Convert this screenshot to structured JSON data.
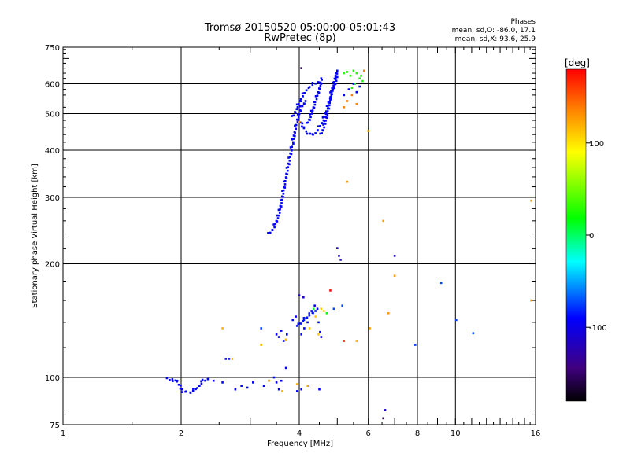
{
  "chart_data": {
    "type": "scatter",
    "title": "Tromsø 20150520 05:00:00-05:01:43",
    "subtitle": "RwPretec (8p)",
    "xlabel": "Frequency [MHz]",
    "ylabel": "Stationary phase Virtual Height [km]",
    "x_scale": "log",
    "y_scale": "log",
    "xlim": [
      1,
      16
    ],
    "ylim": [
      75,
      750
    ],
    "x_ticks": [
      1,
      2,
      4,
      6,
      8,
      10,
      16
    ],
    "y_ticks": [
      75,
      100,
      200,
      300,
      400,
      500,
      600,
      750
    ],
    "grid": true,
    "stats": {
      "heading": "Phases",
      "line_o": "mean, sd,O: -86.0, 17.1",
      "line_x": "mean, sd,X:  93.6, 25.9"
    },
    "colorbar": {
      "label": "[deg]",
      "range": [
        -180,
        180
      ],
      "ticks": [
        100,
        0,
        -100
      ],
      "colors": [
        "#ff0000",
        "#ff8000",
        "#ffff00",
        "#00ff00",
        "#00ffff",
        "#0000ff",
        "#400080",
        "#000000"
      ]
    },
    "series": [
      {
        "type": "line",
        "phase": -100,
        "x": [
          3.35,
          3.45,
          3.55,
          3.62,
          3.7,
          3.78,
          3.85,
          3.9,
          3.95,
          4.0,
          4.05,
          4.15
        ],
        "y": [
          240,
          250,
          270,
          300,
          340,
          380,
          420,
          450,
          480,
          500,
          520,
          540
        ]
      },
      {
        "type": "line",
        "phase": -100,
        "x": [
          4.0,
          4.1,
          4.2,
          4.3,
          4.4,
          4.5,
          4.6,
          4.7,
          4.8,
          4.9,
          5.0
        ],
        "y": [
          480,
          460,
          445,
          440,
          445,
          460,
          480,
          510,
          550,
          590,
          625
        ]
      },
      {
        "type": "line",
        "phase": -100,
        "x": [
          3.85,
          3.95,
          4.05,
          4.15,
          4.25,
          4.35,
          4.45,
          4.55
        ],
        "y": [
          490,
          520,
          550,
          575,
          590,
          600,
          605,
          600
        ]
      },
      {
        "type": "line",
        "phase": -100,
        "x": [
          4.55,
          4.65,
          4.75,
          4.85,
          4.95,
          5.0
        ],
        "y": [
          440,
          470,
          520,
          580,
          630,
          650
        ]
      },
      {
        "type": "line",
        "phase": -100,
        "x": [
          4.2,
          4.3,
          4.4,
          4.5,
          4.55
        ],
        "y": [
          470,
          500,
          540,
          580,
          620
        ]
      },
      {
        "type": "line",
        "phase": -100,
        "x": [
          1.85,
          1.95,
          2.02,
          2.1,
          2.2,
          2.28,
          2.35
        ],
        "y": [
          99,
          98,
          92,
          91,
          94,
          98,
          99
        ]
      },
      {
        "type": "line",
        "phase": -95,
        "x": [
          4.0,
          4.1,
          4.2,
          4.3,
          4.4
        ],
        "y": [
          138,
          142,
          145,
          148,
          150
        ]
      },
      {
        "type": "scatter",
        "phase": 20,
        "x": [
          5.2,
          5.3,
          5.4,
          5.5,
          5.6,
          5.7,
          5.75,
          5.8,
          5.55,
          5.45
        ],
        "y": [
          640,
          645,
          630,
          650,
          640,
          620,
          630,
          610,
          600,
          585
        ]
      },
      {
        "type": "scatter",
        "phase": 140,
        "x": [
          5.2,
          5.3,
          5.45,
          5.6,
          5.85
        ],
        "y": [
          520,
          540,
          560,
          530,
          650
        ]
      },
      {
        "type": "scatter",
        "phase": -100,
        "x": [
          5.2,
          5.35,
          5.5,
          5.6,
          5.7
        ],
        "y": [
          560,
          580,
          600,
          570,
          590
        ]
      },
      {
        "type": "scatter",
        "phase": -100,
        "x": [
          3.5,
          3.55,
          3.6,
          3.65,
          3.72,
          3.85,
          3.92,
          3.95,
          4.05,
          4.12,
          4.2,
          4.3,
          4.38,
          4.45,
          4.48,
          4.52,
          4.55
        ],
        "y": [
          130,
          128,
          133,
          125,
          130,
          142,
          145,
          137,
          130,
          135,
          140,
          150,
          155,
          152,
          140,
          132,
          128
        ]
      },
      {
        "type": "scatter",
        "phase": 110,
        "x": [
          4.25,
          4.4,
          4.55,
          4.62,
          4.48
        ],
        "y": [
          135,
          145,
          152,
          150,
          130
        ]
      },
      {
        "type": "scatter",
        "phase": -100,
        "x": [
          2.42,
          2.55,
          2.6,
          2.65,
          2.75,
          2.85,
          2.95,
          3.05,
          3.25,
          3.35,
          3.45,
          3.5,
          3.6,
          3.7,
          3.55,
          3.95,
          4.05,
          4.22,
          4.5
        ],
        "y": [
          98,
          97,
          112,
          112,
          93,
          95,
          94,
          97,
          95,
          98,
          100,
          97,
          98,
          106,
          93,
          92,
          93,
          95,
          93
        ]
      },
      {
        "type": "scatter",
        "phase": 120,
        "x": [
          2.55,
          2.7,
          3.2,
          3.35,
          3.62,
          3.7,
          3.95,
          4.2
        ],
        "y": [
          135,
          112,
          122,
          98,
          92,
          126,
          96,
          95
        ]
      },
      {
        "type": "scatter",
        "phase": -120,
        "x": [
          5.0,
          5.05,
          5.1,
          6.62,
          7.0,
          4.0,
          4.1
        ],
        "y": [
          220,
          210,
          205,
          82,
          210,
          165,
          163
        ]
      },
      {
        "type": "scatter",
        "phase": -80,
        "x": [
          9.2,
          10.05,
          11.1,
          7.9,
          3.2,
          4.9,
          5.15
        ],
        "y": [
          178,
          142,
          131,
          122,
          135,
          152,
          155
        ]
      },
      {
        "type": "scatter",
        "phase": 130,
        "x": [
          5.3,
          6.55,
          6.75,
          7.0,
          15.6,
          15.6,
          6.0,
          5.6,
          4.0,
          6.05
        ],
        "y": [
          330,
          260,
          148,
          186,
          294,
          160,
          450,
          125,
          475,
          135
        ]
      },
      {
        "type": "scatter",
        "phase": 175,
        "x": [
          4.8,
          5.2
        ],
        "y": [
          170,
          125
        ]
      },
      {
        "type": "scatter",
        "phase": 5,
        "x": [
          4.7,
          4.35
        ],
        "y": [
          148,
          152
        ]
      },
      {
        "type": "scatter",
        "phase": -160,
        "x": [
          4.05,
          6.55
        ],
        "y": [
          660,
          78
        ]
      }
    ]
  }
}
